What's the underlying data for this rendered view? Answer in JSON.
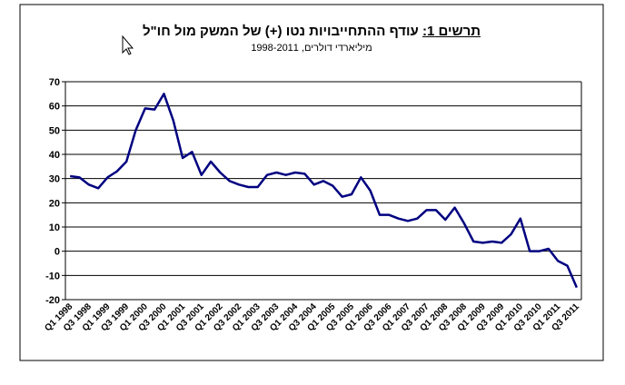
{
  "chart_data": {
    "type": "line",
    "title_prefix": "תרשים 1:",
    "title": "עודף ההתחייבויות נטו (+) של המשק מול חו\"ל",
    "subtitle": "מיליארדי דולרים, 1998-2011",
    "categories": [
      "Q1 1998",
      null,
      "Q3 1998",
      null,
      "Q1 1999",
      null,
      "Q3 1999",
      null,
      "Q1 2000",
      null,
      "Q3 2000",
      null,
      "Q1 2001",
      null,
      "Q3 2001",
      null,
      "Q1 2002",
      null,
      "Q3 2002",
      null,
      "Q1 2003",
      null,
      "Q3 2003",
      null,
      "Q1 2004",
      null,
      "Q3 2004",
      null,
      "Q1 2005",
      null,
      "Q3 2005",
      null,
      "Q1 2006",
      null,
      "Q3 2006",
      null,
      "Q1 2007",
      null,
      "Q3 2007",
      null,
      "Q1 2008",
      null,
      "Q3 2008",
      null,
      "Q1 2009",
      null,
      "Q3 2009",
      null,
      "Q1 2010",
      null,
      "Q3 2010",
      null,
      "Q1 2011",
      null,
      "Q3 2011"
    ],
    "series": [
      {
        "color": "#000080",
        "values": [
          31,
          30.5,
          27.5,
          26,
          30.5,
          33,
          37,
          50,
          59,
          58.5,
          65,
          54,
          38.5,
          41,
          31.5,
          37,
          32.5,
          29,
          27.5,
          26.5,
          26.5,
          31.5,
          32.5,
          31.5,
          32.5,
          32,
          27.5,
          29,
          27,
          22.5,
          23.5,
          30.5,
          25,
          15,
          15,
          13.5,
          12.5,
          13.5,
          17,
          17,
          13,
          18,
          11.5,
          4,
          3.5,
          4,
          3.5,
          7,
          13.5,
          0,
          0,
          1,
          -4,
          -6,
          -15
        ]
      }
    ],
    "ylim": [
      -20,
      70
    ],
    "yticks": [
      -20,
      -10,
      0,
      10,
      20,
      30,
      40,
      50,
      60,
      70
    ],
    "grid": true
  }
}
